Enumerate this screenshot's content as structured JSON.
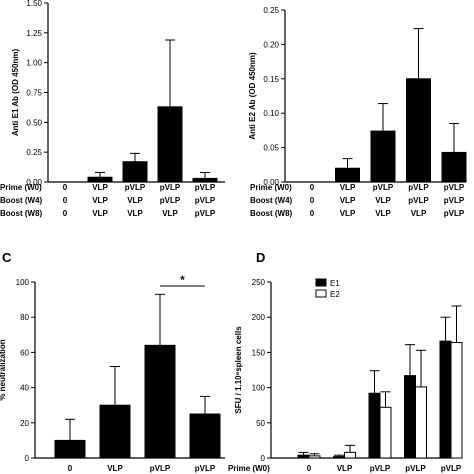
{
  "figure": {
    "row_labels": [
      "Prime (W0)",
      "Boost (W4)",
      "Boost (W8)"
    ],
    "bottom_row_label": "Prime (W0)"
  },
  "chart_data": [
    {
      "panel": "",
      "type": "bar",
      "ylabel": "Anti E1 Ab (OD 450nm)",
      "ylim": [
        0,
        1.5
      ],
      "yticks": [
        "0.00",
        "0.25",
        "0.50",
        "0.75",
        "1.00",
        "1.25",
        "1.50"
      ],
      "ytick_values": [
        0,
        0.25,
        0.5,
        0.75,
        1.0,
        1.25,
        1.5
      ],
      "group_labels": [
        [
          "0",
          "VLP",
          "pVLP",
          "pVLP",
          "pVLP"
        ],
        [
          "0",
          "VLP",
          "VLP",
          "pVLP",
          "pVLP"
        ],
        [
          "0",
          "VLP",
          "VLP",
          "VLP",
          "pVLP"
        ]
      ],
      "values": [
        0.0,
        0.04,
        0.17,
        0.63,
        0.03
      ],
      "errors": [
        0.0,
        0.04,
        0.07,
        0.56,
        0.05
      ]
    },
    {
      "panel": "",
      "type": "bar",
      "ylabel": "Anti E2 Ab (OD 450nm)",
      "ylim": [
        0,
        0.25
      ],
      "yticks": [
        "0.00",
        "0.05",
        "0.10",
        "0.15",
        "0.20",
        "0.25"
      ],
      "ytick_values": [
        0,
        0.05,
        0.1,
        0.15,
        0.2,
        0.25
      ],
      "group_labels": [
        [
          "0",
          "VLP",
          "pVLP",
          "pVLP",
          "pVLP"
        ],
        [
          "0",
          "VLP",
          "VLP",
          "pVLP",
          "pVLP"
        ],
        [
          "0",
          "VLP",
          "VLP",
          "VLP",
          "pVLP"
        ]
      ],
      "values": [
        0.0,
        0.02,
        0.074,
        0.15,
        0.043
      ],
      "errors": [
        0.0,
        0.014,
        0.04,
        0.073,
        0.042
      ]
    },
    {
      "panel": "C",
      "type": "bar",
      "ylabel": "% neutralization",
      "ylim": [
        0,
        100
      ],
      "yticks": [
        "0",
        "20",
        "40",
        "60",
        "80",
        "100"
      ],
      "ytick_values": [
        0,
        20,
        40,
        60,
        80,
        100
      ],
      "group_labels": [
        [
          "0",
          "VLP",
          "pVLP",
          "pVLP"
        ]
      ],
      "values": [
        10,
        30,
        64,
        25
      ],
      "errors": [
        12,
        22,
        29,
        10
      ],
      "annotation": {
        "text": "*",
        "between": [
          2,
          3
        ]
      }
    },
    {
      "panel": "D",
      "type": "bar",
      "ylabel": "SFU / 1.10⁶spleen cells",
      "ylim": [
        0,
        250
      ],
      "yticks": [
        "0",
        "50",
        "100",
        "150",
        "200",
        "250"
      ],
      "ytick_values": [
        0,
        50,
        100,
        150,
        200,
        250
      ],
      "group_labels": [
        [
          "0",
          "VLP",
          "pVLP",
          "pVLP",
          "pVLP"
        ]
      ],
      "series": [
        {
          "name": "E1",
          "color": "#000000",
          "values": [
            4,
            2,
            92,
            117,
            166
          ],
          "errors": [
            4,
            2,
            32,
            44,
            34
          ]
        },
        {
          "name": "E2",
          "color": "#ffffff",
          "values": [
            3,
            8,
            72,
            101,
            164
          ],
          "errors": [
            3,
            10,
            22,
            52,
            52
          ]
        }
      ]
    }
  ]
}
